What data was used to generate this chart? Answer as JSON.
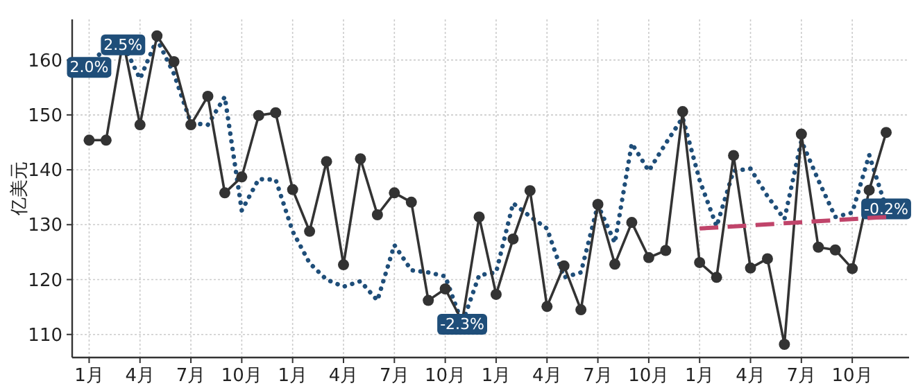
{
  "chart_data": {
    "type": "line",
    "ylabel": "亿美元",
    "categories": [
      "1月",
      null,
      null,
      "4月",
      null,
      null,
      "7月",
      null,
      null,
      "10月",
      null,
      null,
      "1月",
      null,
      null,
      "4月",
      null,
      null,
      "7月",
      null,
      null,
      "10月",
      null,
      null,
      "1月",
      null,
      null,
      "4月",
      null,
      null,
      "7月",
      null,
      null,
      "10月",
      null,
      null,
      "1月",
      null,
      null,
      "4月",
      null,
      null,
      "7月",
      null,
      null,
      "10月",
      null,
      null
    ],
    "series": [
      {
        "type": "line",
        "color": "#1f4e79",
        "line_style": "dotted",
        "marker": "none",
        "values": [
          158.8,
          162.5,
          162.9,
          156.6,
          163.8,
          157.5,
          148.5,
          148.2,
          153.3,
          132.6,
          138.3,
          138.2,
          128.8,
          123,
          120,
          118.7,
          119.7,
          116.2,
          126.3,
          121.7,
          121.3,
          120.6,
          112,
          120.8,
          121.3,
          133.9,
          131.5,
          129.3,
          120.4,
          121.3,
          133.6,
          126.7,
          144.8,
          139.8,
          144.8,
          149.5,
          138.1,
          129.7,
          139.8,
          140.2,
          135.2,
          131,
          145.3,
          138.1,
          131.4,
          132.2,
          142.7,
          133
        ]
      },
      {
        "type": "line",
        "color": "#333333",
        "line_style": "solid",
        "marker": "circle",
        "values": [
          145.4,
          145.4,
          163.5,
          148.2,
          164.4,
          159.7,
          148.2,
          153.4,
          135.8,
          138.7,
          149.9,
          150.4,
          136.4,
          128.8,
          141.5,
          122.7,
          142,
          131.8,
          135.8,
          134.1,
          116.2,
          118.3,
          112.4,
          131.4,
          117.3,
          127.4,
          136.2,
          115.1,
          122.5,
          114.5,
          133.7,
          122.8,
          130.4,
          124,
          125.3,
          150.6,
          123.1,
          120.4,
          142.6,
          122.1,
          123.8,
          108.2,
          146.5,
          125.9,
          125.4,
          122,
          136.3,
          146.8
        ]
      },
      {
        "type": "line",
        "color": "#c0446a",
        "line_style": "dashed",
        "marker": "none",
        "values": [
          null,
          null,
          null,
          null,
          null,
          null,
          null,
          null,
          null,
          null,
          null,
          null,
          null,
          null,
          null,
          null,
          null,
          null,
          null,
          null,
          null,
          null,
          null,
          null,
          null,
          null,
          null,
          null,
          null,
          null,
          null,
          null,
          null,
          null,
          null,
          null,
          129.3,
          null,
          null,
          null,
          null,
          null,
          null,
          null,
          null,
          null,
          null,
          131.4
        ]
      }
    ],
    "annotations": [
      {
        "text": "2.0%",
        "y": 158.8
      },
      {
        "text": "2.5%",
        "y": 162.9
      },
      {
        "text": "-2.3%",
        "y": 112
      },
      {
        "text": "-0.2%",
        "y": 133
      }
    ],
    "ylim": [
      105.8,
      167.4
    ],
    "yticks": [
      110,
      120,
      130,
      140,
      150,
      160
    ],
    "grid": true
  }
}
